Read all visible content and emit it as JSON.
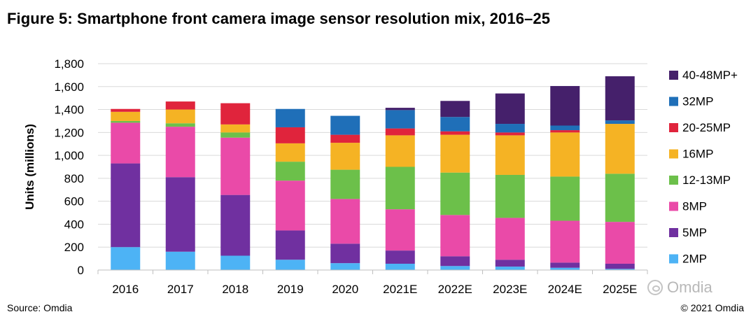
{
  "title": "Figure 5: Smartphone front camera image sensor resolution mix, 2016–25",
  "source": "Source: Omdia",
  "copyright": "© 2021 Omdia",
  "watermark": "Omdia",
  "chart_data": {
    "type": "bar",
    "stacked": true,
    "title": "Figure 5: Smartphone front camera image sensor resolution mix, 2016–25",
    "xlabel": "",
    "ylabel": "Units (millions)",
    "ylim": [
      0,
      1800
    ],
    "yticks": [
      0,
      200,
      400,
      600,
      800,
      1000,
      1200,
      1400,
      1600,
      1800
    ],
    "ytick_labels": [
      "0",
      "200",
      "400",
      "600",
      "800",
      "1,000",
      "1,200",
      "1,400",
      "1,600",
      "1,800"
    ],
    "categories": [
      "2016",
      "2017",
      "2018",
      "2019",
      "2020",
      "2021E",
      "2022E",
      "2023E",
      "2024E",
      "2025E"
    ],
    "legend_position": "right",
    "series": [
      {
        "name": "2MP",
        "color": "#4db3f5",
        "values": [
          200,
          160,
          125,
          90,
          60,
          55,
          35,
          30,
          20,
          10
        ]
      },
      {
        "name": "5MP",
        "color": "#7030a0",
        "values": [
          730,
          650,
          530,
          255,
          170,
          115,
          85,
          60,
          45,
          45
        ]
      },
      {
        "name": "8MP",
        "color": "#ea4aa8",
        "values": [
          355,
          440,
          500,
          435,
          390,
          360,
          360,
          365,
          365,
          365
        ]
      },
      {
        "name": "12-13MP",
        "color": "#6cc04a",
        "values": [
          15,
          30,
          45,
          165,
          255,
          370,
          370,
          375,
          385,
          420
        ]
      },
      {
        "name": "16MP",
        "color": "#f5b324",
        "values": [
          80,
          120,
          70,
          160,
          235,
          275,
          330,
          345,
          385,
          435
        ]
      },
      {
        "name": "20-25MP",
        "color": "#e0243c",
        "values": [
          25,
          70,
          185,
          140,
          70,
          60,
          30,
          25,
          20,
          0
        ]
      },
      {
        "name": "32MP",
        "color": "#1f6fb8",
        "values": [
          0,
          0,
          0,
          160,
          165,
          160,
          125,
          75,
          40,
          30
        ]
      },
      {
        "name": "40-48MP+",
        "color": "#45206b",
        "values": [
          0,
          0,
          0,
          0,
          0,
          20,
          140,
          265,
          345,
          385
        ]
      }
    ]
  }
}
